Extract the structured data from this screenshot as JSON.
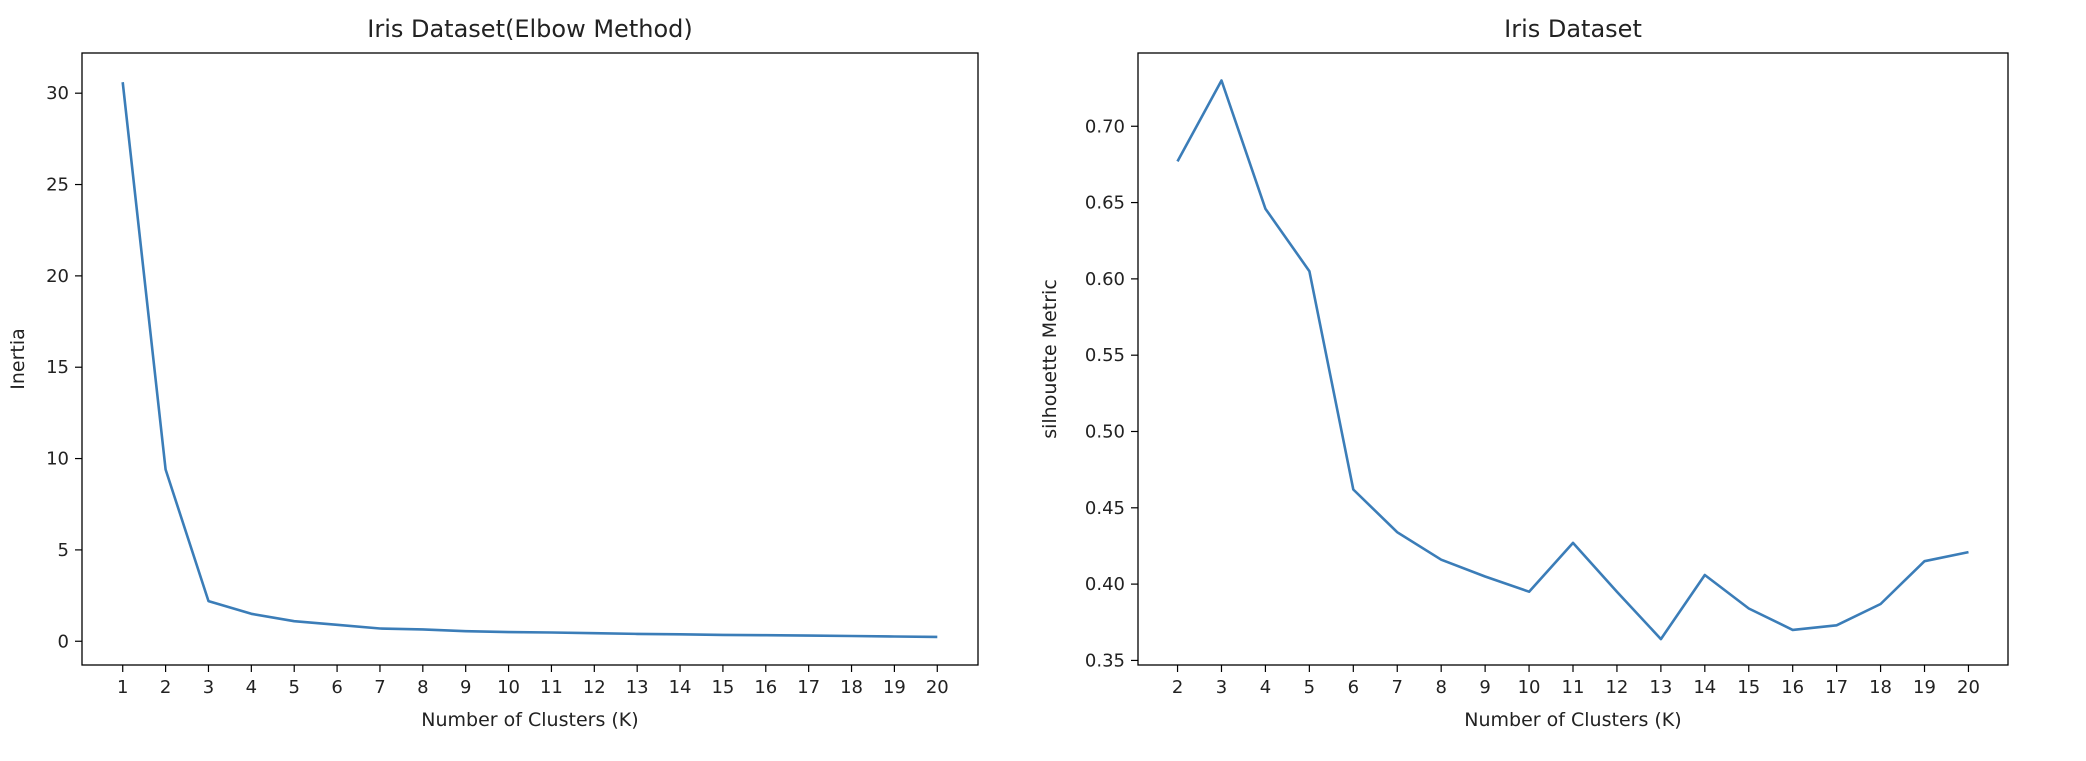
{
  "chart_data": [
    {
      "type": "line",
      "title": "Iris Dataset(Elbow Method)",
      "xlabel": "Number of Clusters (K)",
      "ylabel": "Inertia",
      "x": [
        1,
        2,
        3,
        4,
        5,
        6,
        7,
        8,
        9,
        10,
        11,
        12,
        13,
        14,
        15,
        16,
        17,
        18,
        19,
        20
      ],
      "series": [
        {
          "values": [
            30.6,
            9.4,
            2.2,
            1.5,
            1.1,
            0.9,
            0.7,
            0.65,
            0.55,
            0.5,
            0.48,
            0.44,
            0.4,
            0.38,
            0.35,
            0.33,
            0.31,
            0.29,
            0.26,
            0.24
          ]
        }
      ],
      "xticks": [
        "1",
        "2",
        "3",
        "4",
        "5",
        "6",
        "7",
        "8",
        "9",
        "10",
        "11",
        "12",
        "13",
        "14",
        "15",
        "16",
        "17",
        "18",
        "19",
        "20"
      ],
      "yticks": [
        0,
        5,
        10,
        15,
        20,
        25,
        30
      ],
      "ylim": [
        -1.3,
        32.2
      ],
      "xlim": [
        0.05,
        20.95
      ],
      "grid": false,
      "color": "#3b7db8"
    },
    {
      "type": "line",
      "title": "Iris Dataset",
      "xlabel": "Number of Clusters (K)",
      "ylabel": "silhouette Metric",
      "x": [
        2,
        3,
        4,
        5,
        6,
        7,
        8,
        9,
        10,
        11,
        12,
        13,
        14,
        15,
        16,
        17,
        18,
        19,
        20
      ],
      "series": [
        {
          "values": [
            0.677,
            0.73,
            0.646,
            0.605,
            0.462,
            0.434,
            0.416,
            0.405,
            0.395,
            0.427,
            0.395,
            0.364,
            0.406,
            0.384,
            0.37,
            0.373,
            0.387,
            0.415,
            0.421
          ]
        }
      ],
      "xticks": [
        "2",
        "3",
        "4",
        "5",
        "6",
        "7",
        "8",
        "9",
        "10",
        "11",
        "12",
        "13",
        "14",
        "15",
        "16",
        "17",
        "18",
        "19",
        "20"
      ],
      "yticks": [
        "0.35",
        "0.40",
        "0.45",
        "0.50",
        "0.55",
        "0.60",
        "0.65",
        "0.70"
      ],
      "ylim": [
        0.347,
        0.748
      ],
      "xlim": [
        1.1,
        20.9
      ],
      "grid": false,
      "color": "#3b7db8"
    }
  ]
}
